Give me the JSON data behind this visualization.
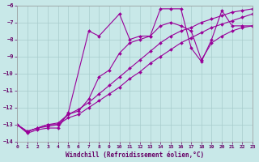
{
  "title": "",
  "xlabel": "Windchill (Refroidissement éolien,°C)",
  "ylabel": "",
  "background_color": "#c8e8e8",
  "line_color": "#990099",
  "grid_color": "#a8cccc",
  "xlim": [
    0,
    23
  ],
  "ylim": [
    -14,
    -6
  ],
  "yticks": [
    -14,
    -13,
    -12,
    -11,
    -10,
    -9,
    -8,
    -7,
    -6
  ],
  "xticks": [
    0,
    1,
    2,
    3,
    4,
    5,
    6,
    7,
    8,
    9,
    10,
    11,
    12,
    13,
    14,
    15,
    16,
    17,
    18,
    19,
    20,
    21,
    22,
    23
  ],
  "series": [
    {
      "x": [
        0,
        1,
        2,
        3,
        4,
        5,
        7,
        8,
        10,
        11,
        12,
        13,
        14,
        15,
        16,
        17,
        18,
        19,
        20,
        21,
        22,
        23
      ],
      "y": [
        -13.0,
        -13.5,
        -13.3,
        -13.2,
        -13.2,
        -12.3,
        -7.5,
        -7.8,
        -6.5,
        -8.0,
        -7.8,
        -7.8,
        -6.2,
        -6.2,
        -6.2,
        -8.5,
        -9.3,
        -8.0,
        -6.3,
        -7.2,
        -7.2,
        -7.2
      ]
    },
    {
      "x": [
        0,
        1,
        2,
        3,
        4,
        5,
        6,
        7,
        8,
        9,
        10,
        11,
        12,
        13,
        14,
        15,
        16,
        17,
        18,
        19,
        20,
        21,
        22,
        23
      ],
      "y": [
        -13.0,
        -13.4,
        -13.2,
        -13.1,
        -13.0,
        -12.6,
        -12.4,
        -12.0,
        -11.6,
        -11.2,
        -10.8,
        -10.3,
        -9.9,
        -9.4,
        -9.0,
        -8.6,
        -8.2,
        -7.9,
        -7.6,
        -7.3,
        -7.1,
        -6.9,
        -6.7,
        -6.5
      ]
    },
    {
      "x": [
        0,
        1,
        2,
        3,
        4,
        5,
        6,
        7,
        8,
        9,
        10,
        11,
        12,
        13,
        14,
        15,
        16,
        17,
        18,
        19,
        20,
        21,
        22,
        23
      ],
      "y": [
        -13.0,
        -13.4,
        -13.2,
        -13.0,
        -12.9,
        -12.4,
        -12.1,
        -11.7,
        -11.2,
        -10.7,
        -10.2,
        -9.7,
        -9.2,
        -8.7,
        -8.2,
        -7.8,
        -7.5,
        -7.3,
        -7.0,
        -6.8,
        -6.6,
        -6.4,
        -6.3,
        -6.2
      ]
    },
    {
      "x": [
        0,
        1,
        2,
        3,
        4,
        5,
        6,
        7,
        8,
        9,
        10,
        11,
        12,
        13,
        14,
        15,
        16,
        17,
        18,
        19,
        20,
        21,
        22,
        23
      ],
      "y": [
        -13.0,
        -13.4,
        -13.2,
        -13.0,
        -13.0,
        -12.4,
        -12.2,
        -11.5,
        -10.2,
        -9.8,
        -8.8,
        -8.2,
        -8.0,
        -7.8,
        -7.2,
        -7.0,
        -7.2,
        -7.5,
        -9.2,
        -8.2,
        -7.8,
        -7.5,
        -7.3,
        -7.2
      ]
    }
  ]
}
